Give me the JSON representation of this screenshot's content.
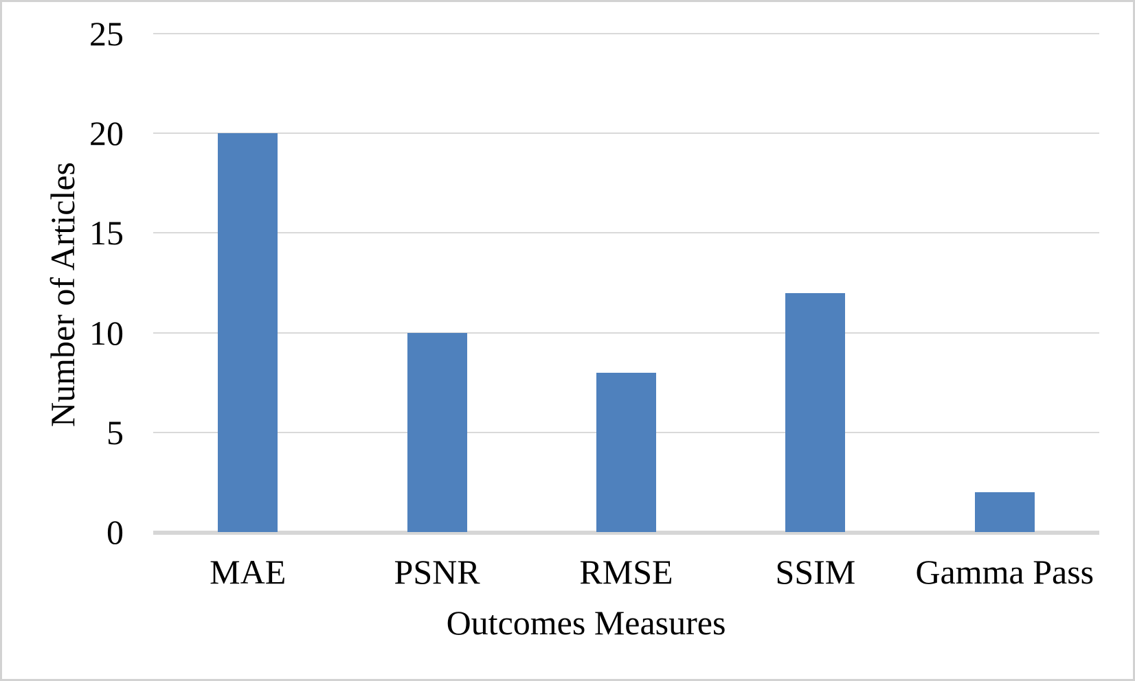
{
  "chart_data": {
    "type": "bar",
    "title": "",
    "xlabel": "Outcomes Measures",
    "ylabel": "Number of Articles",
    "categories": [
      "MAE",
      "PSNR",
      "RMSE",
      "SSIM",
      "Gamma Pass"
    ],
    "values": [
      20,
      10,
      8,
      12,
      2
    ],
    "ylim": [
      0,
      25
    ],
    "yticks": [
      0,
      5,
      10,
      15,
      20,
      25
    ],
    "ytick_labels": [
      "0",
      "5",
      "10",
      "15",
      "20",
      "25"
    ],
    "bar_color": "#4F81BD",
    "gridline_color": "#D9D9D9",
    "axis_line_color": "#D6D6D6",
    "text_color": "#000000",
    "background_color": "#FFFFFF",
    "border_color": "#D2D2D2",
    "grid": "horizontal",
    "legend": "none"
  }
}
